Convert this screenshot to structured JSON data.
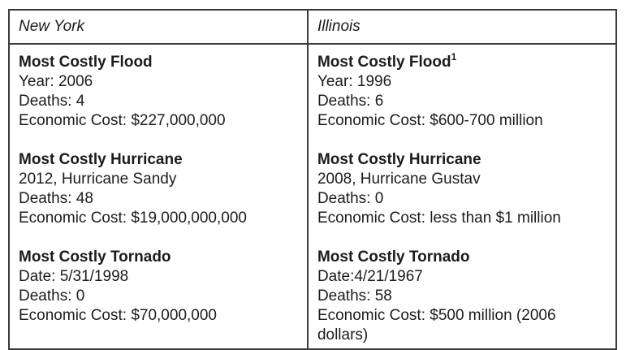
{
  "colors": {
    "border": "#3b3b3b",
    "text": "#1c1c1c",
    "background": "#ffffff"
  },
  "table": {
    "columns": [
      {
        "header": "New York",
        "sections": [
          {
            "title": "Most Costly Flood",
            "superscript": "",
            "lines": [
              "Year: 2006",
              "Deaths: 4",
              "Economic Cost: $227,000,000"
            ]
          },
          {
            "title": "Most Costly Hurricane",
            "superscript": "",
            "lines": [
              "2012, Hurricane Sandy",
              "Deaths: 48",
              "Economic Cost: $19,000,000,000"
            ]
          },
          {
            "title": "Most Costly Tornado",
            "superscript": "",
            "lines": [
              "Date: 5/31/1998",
              "Deaths: 0",
              "Economic Cost: $70,000,000"
            ]
          }
        ]
      },
      {
        "header": "Illinois",
        "sections": [
          {
            "title": "Most Costly Flood",
            "superscript": "1",
            "lines": [
              "Year: 1996",
              "Deaths: 6",
              "Economic Cost: $600-700 million"
            ]
          },
          {
            "title": "Most Costly Hurricane",
            "superscript": "",
            "lines": [
              "2008, Hurricane Gustav",
              "Deaths: 0",
              "Economic Cost: less than $1 million"
            ]
          },
          {
            "title": "Most Costly Tornado",
            "superscript": "",
            "lines": [
              "Date:4/21/1967",
              "Deaths: 58",
              "Economic Cost: $500 million (2006 dollars)"
            ]
          }
        ]
      }
    ]
  }
}
